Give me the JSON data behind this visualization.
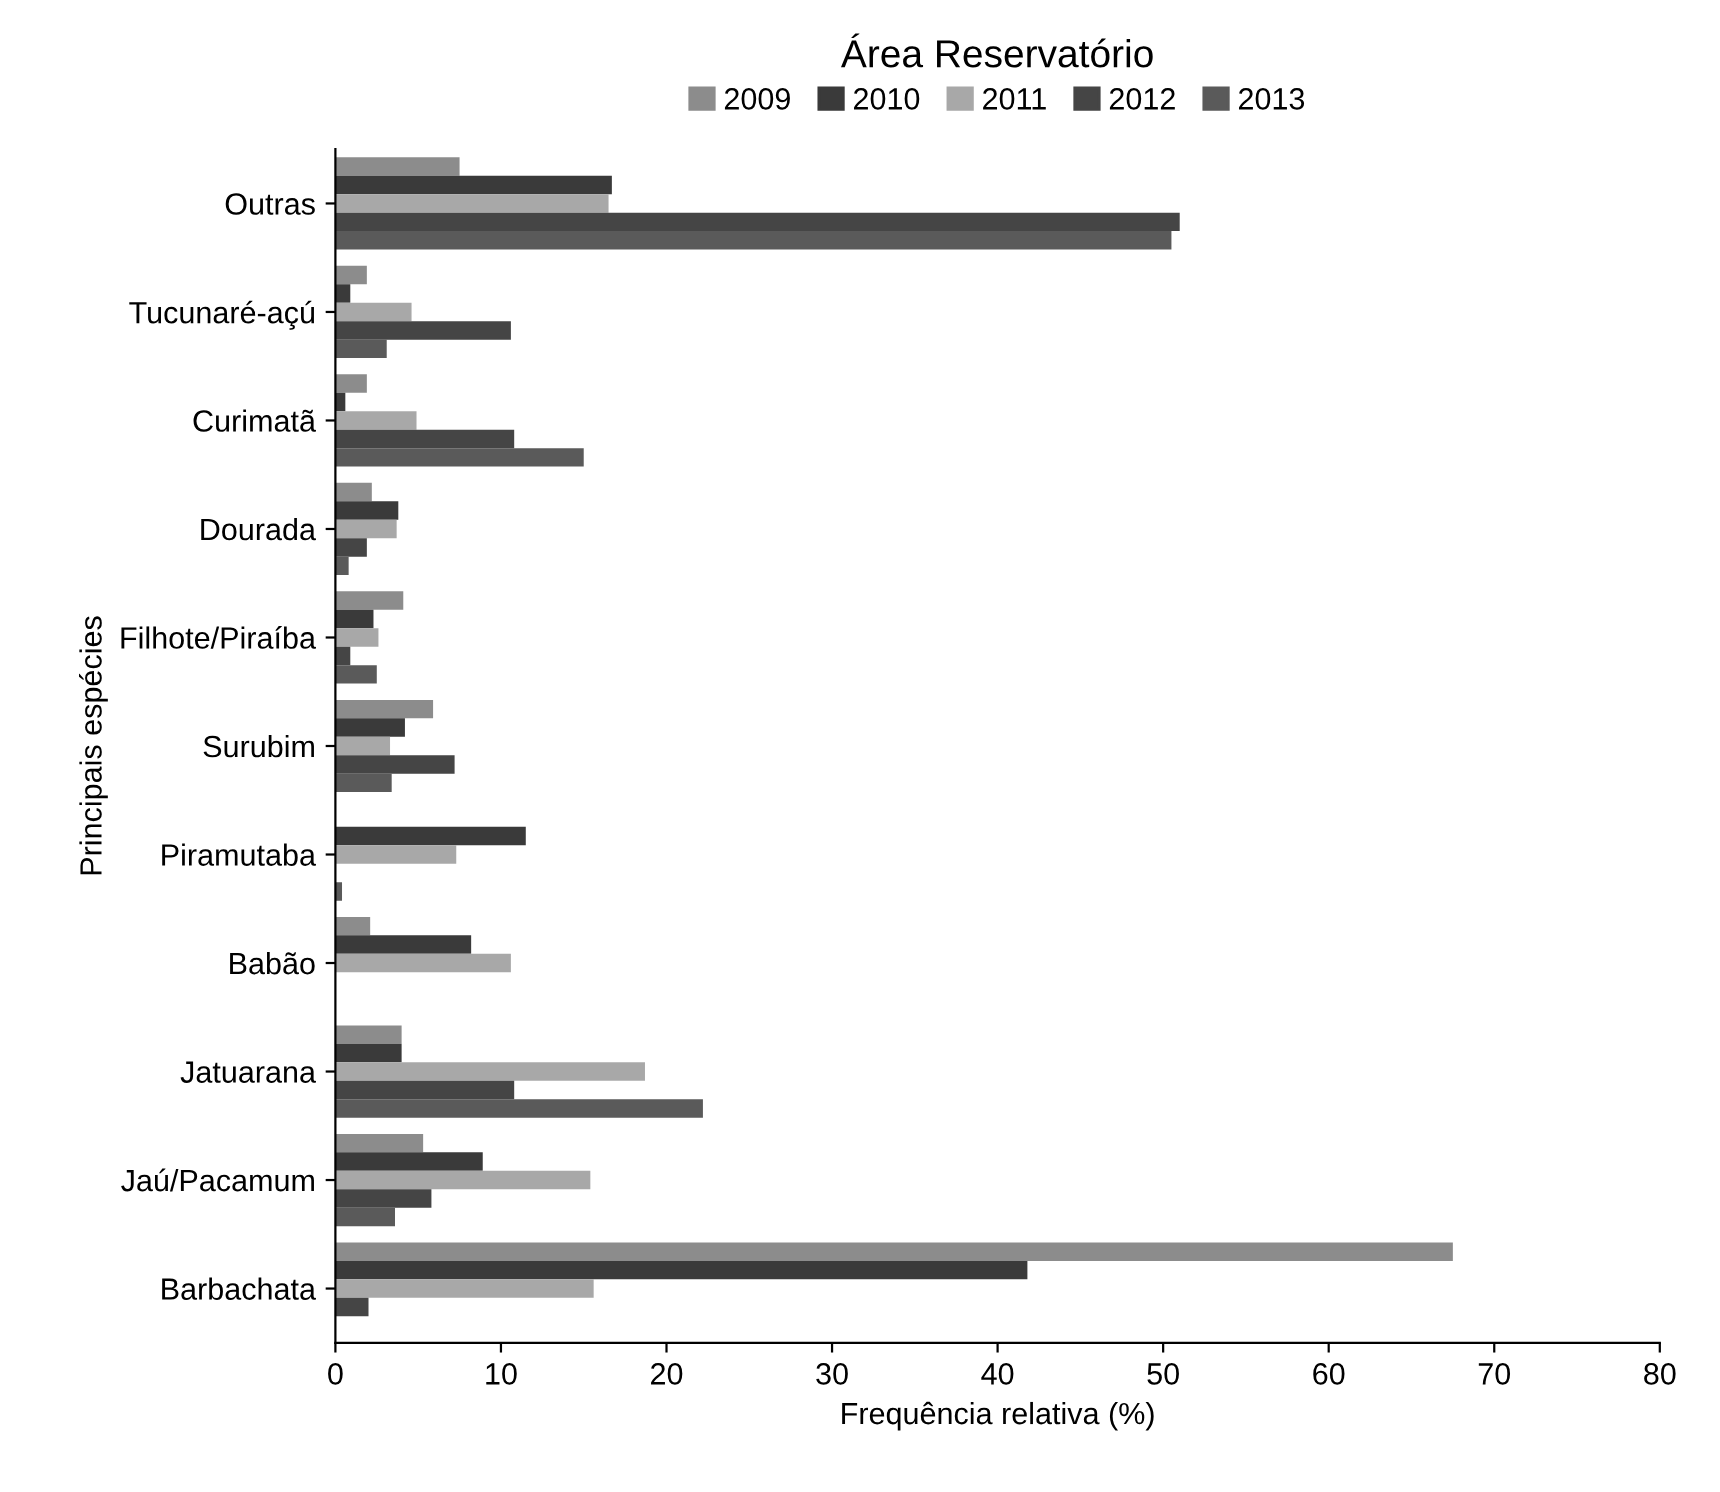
{
  "chart_data": {
    "type": "bar",
    "orientation": "horizontal",
    "title": "Área Reservatório",
    "xlabel": "Frequência relativa (%)",
    "ylabel": "Principais espécies",
    "categories": [
      "Outras",
      "Tucunaré-açú",
      "Curimatã",
      "Dourada",
      "Filhote/Piraíba",
      "Surubim",
      "Piramutaba",
      "Babão",
      "Jatuarana",
      "Jaú/Pacamum",
      "Barbachata"
    ],
    "series": [
      {
        "name": "2009",
        "color": "#8c8c8c",
        "values": [
          7.5,
          1.9,
          1.9,
          2.2,
          4.1,
          5.9,
          0,
          2.1,
          4.0,
          5.3,
          67.5
        ]
      },
      {
        "name": "2010",
        "color": "#3a3a3a",
        "values": [
          16.7,
          0.9,
          0.6,
          3.8,
          2.3,
          4.2,
          11.5,
          8.2,
          4.0,
          8.9,
          41.8
        ]
      },
      {
        "name": "2011",
        "color": "#a8a8a8",
        "values": [
          16.5,
          4.6,
          4.9,
          3.7,
          2.6,
          3.3,
          7.3,
          10.6,
          18.7,
          15.4,
          15.6
        ]
      },
      {
        "name": "2012",
        "color": "#454545",
        "values": [
          51.0,
          10.6,
          10.8,
          1.9,
          0.9,
          7.2,
          0,
          0,
          10.8,
          5.8,
          2.0
        ]
      },
      {
        "name": "2013",
        "color": "#5a5a5a",
        "values": [
          50.5,
          3.1,
          15.0,
          0.8,
          2.5,
          3.4,
          0.4,
          0,
          22.2,
          3.6,
          0
        ]
      }
    ],
    "xlim": [
      0,
      80
    ],
    "xticks": [
      0,
      10,
      20,
      30,
      40,
      50,
      60,
      70,
      80
    ],
    "legend": "top",
    "grid": false
  }
}
